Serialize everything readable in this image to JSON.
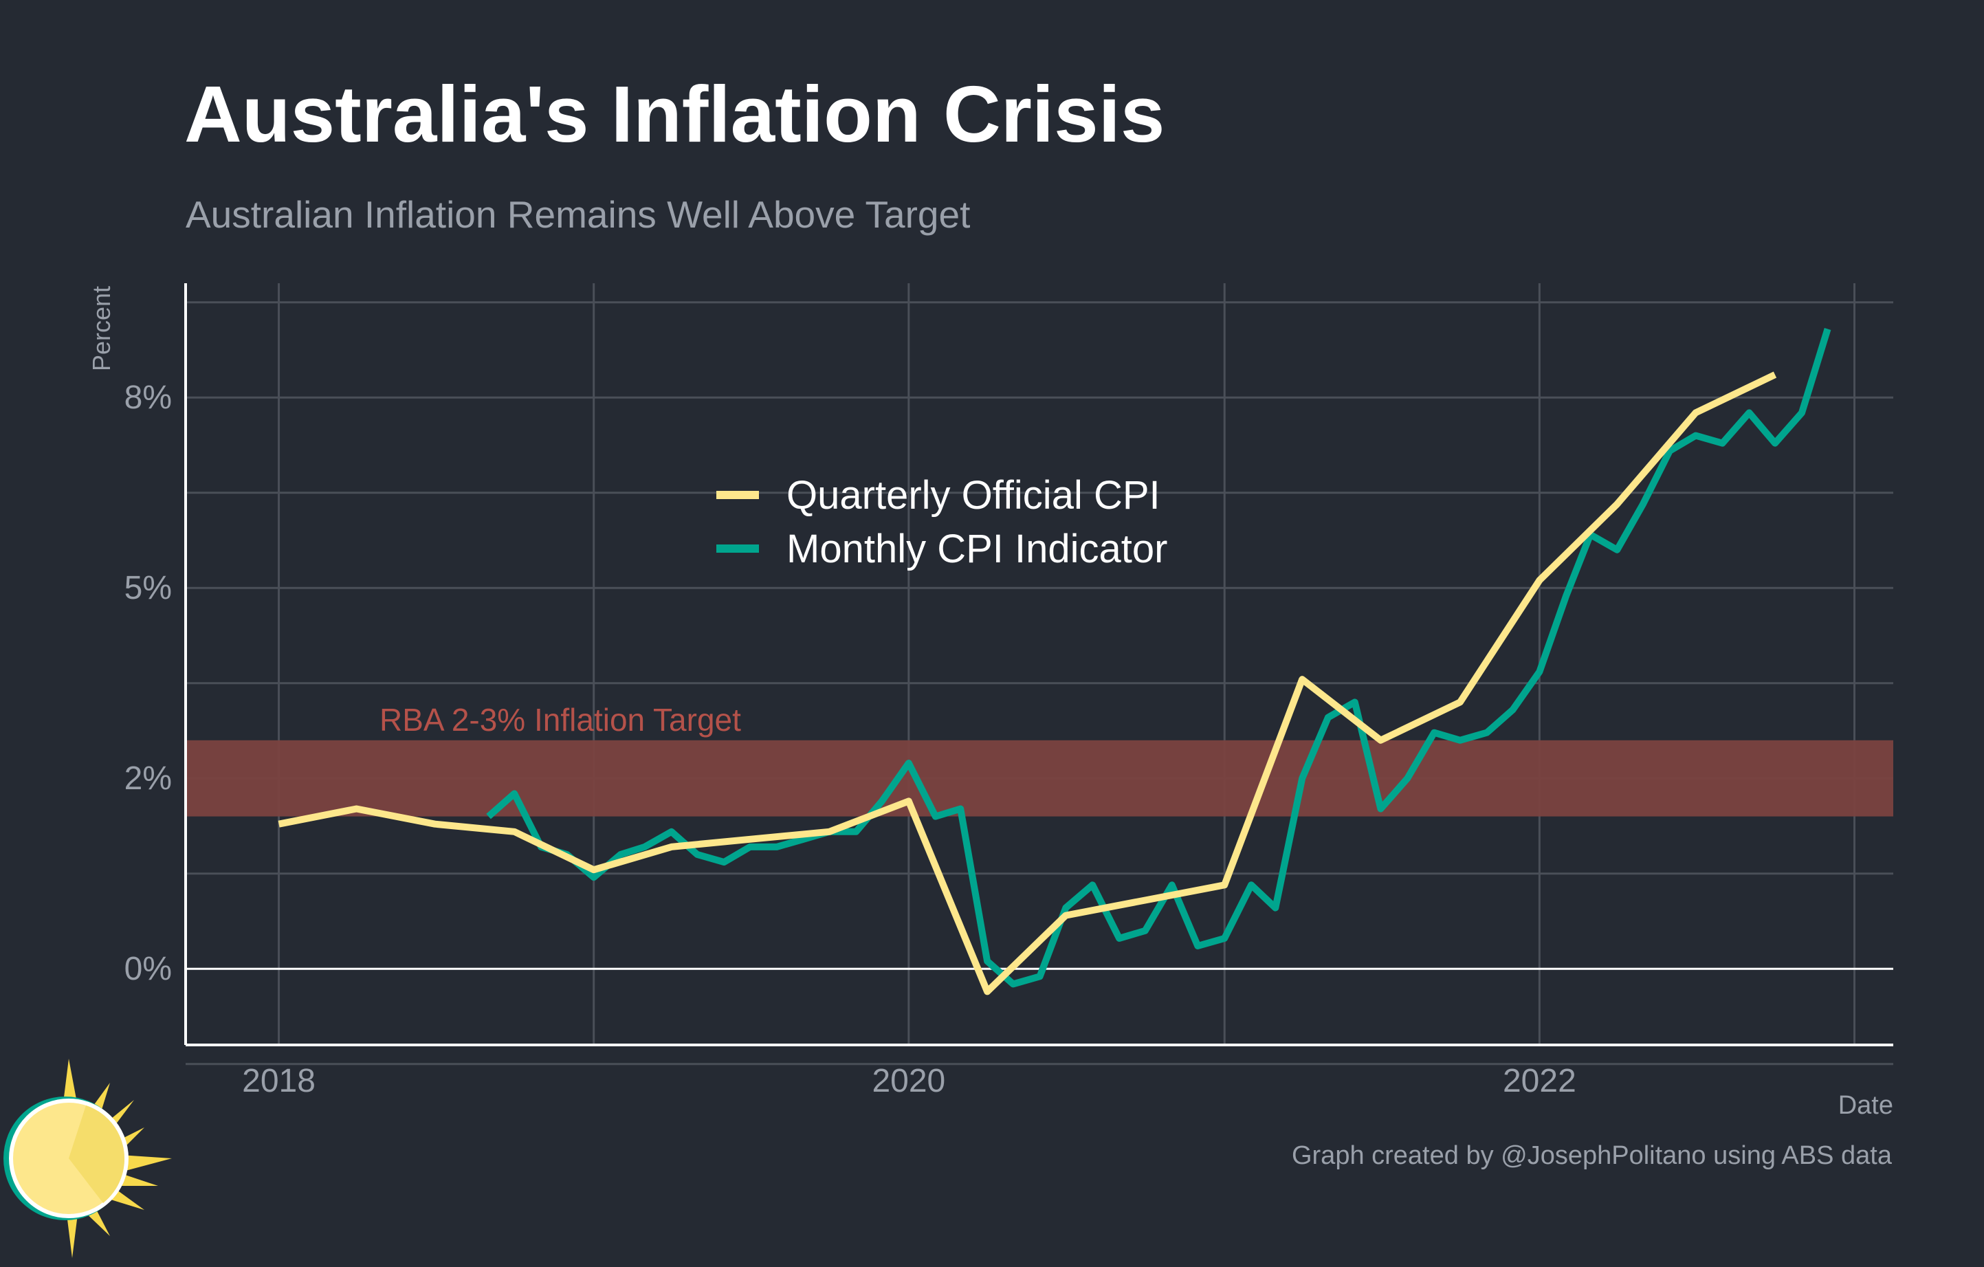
{
  "title": "Australia's Inflation Crisis",
  "subtitle": "Australian Inflation Remains Well Above Target",
  "caption": "Graph created by @JosephPolitano using ABS data",
  "colors": {
    "background": "#252a33",
    "quarterly": "#fde78c",
    "monthly": "#00a58e",
    "target_band": "#7a4240",
    "target_label": "#b5524a",
    "grid": "#4a4f58",
    "axis": "#ffffff",
    "tick_text": "#9aa0aa"
  },
  "chart_data": {
    "type": "line",
    "title": "Australia's Inflation Crisis",
    "subtitle": "Australian Inflation Remains Well Above Target",
    "xlabel": "Date",
    "ylabel": "Percent",
    "xlim": [
      "2017-09-15",
      "2023-02-15"
    ],
    "ylim": [
      -1.0,
      9.0
    ],
    "x_ticks": [
      {
        "date": "2018-01-01",
        "label": "2018"
      },
      {
        "date": "2020-01-01",
        "label": "2020"
      },
      {
        "date": "2022-01-01",
        "label": "2022"
      }
    ],
    "y_ticks": [
      {
        "value": 0,
        "label": "0%"
      },
      {
        "value": 2.5,
        "label": "2%"
      },
      {
        "value": 5,
        "label": "5%"
      },
      {
        "value": 7.5,
        "label": "8%"
      }
    ],
    "grid": true,
    "legend_position": "top-center",
    "target_band": {
      "label": "RBA 2-3% Inflation Target",
      "low": 2.0,
      "high": 3.0
    },
    "series": [
      {
        "name": "Quarterly Official CPI",
        "color": "#fde78c",
        "points": [
          {
            "x": "2018-01-01",
            "y": 1.9
          },
          {
            "x": "2018-04-01",
            "y": 2.1
          },
          {
            "x": "2018-07-01",
            "y": 1.9
          },
          {
            "x": "2018-10-01",
            "y": 1.8
          },
          {
            "x": "2019-01-01",
            "y": 1.3
          },
          {
            "x": "2019-04-01",
            "y": 1.6
          },
          {
            "x": "2019-07-01",
            "y": 1.7
          },
          {
            "x": "2019-10-01",
            "y": 1.8
          },
          {
            "x": "2020-01-01",
            "y": 2.2
          },
          {
            "x": "2020-04-01",
            "y": -0.3
          },
          {
            "x": "2020-07-01",
            "y": 0.7
          },
          {
            "x": "2020-10-01",
            "y": 0.9
          },
          {
            "x": "2021-01-01",
            "y": 1.1
          },
          {
            "x": "2021-04-01",
            "y": 3.8
          },
          {
            "x": "2021-07-01",
            "y": 3.0
          },
          {
            "x": "2021-10-01",
            "y": 3.5
          },
          {
            "x": "2022-01-01",
            "y": 5.1
          },
          {
            "x": "2022-04-01",
            "y": 6.1
          },
          {
            "x": "2022-07-01",
            "y": 7.3
          },
          {
            "x": "2022-10-01",
            "y": 7.8
          }
        ]
      },
      {
        "name": "Monthly CPI Indicator",
        "color": "#00a58e",
        "points": [
          {
            "x": "2018-09-01",
            "y": 2.0
          },
          {
            "x": "2018-10-01",
            "y": 2.3
          },
          {
            "x": "2018-11-01",
            "y": 1.6
          },
          {
            "x": "2018-12-01",
            "y": 1.5
          },
          {
            "x": "2019-01-01",
            "y": 1.2
          },
          {
            "x": "2019-02-01",
            "y": 1.5
          },
          {
            "x": "2019-03-01",
            "y": 1.6
          },
          {
            "x": "2019-04-01",
            "y": 1.8
          },
          {
            "x": "2019-05-01",
            "y": 1.5
          },
          {
            "x": "2019-06-01",
            "y": 1.4
          },
          {
            "x": "2019-07-01",
            "y": 1.6
          },
          {
            "x": "2019-08-01",
            "y": 1.6
          },
          {
            "x": "2019-09-01",
            "y": 1.7
          },
          {
            "x": "2019-10-01",
            "y": 1.8
          },
          {
            "x": "2019-11-01",
            "y": 1.8
          },
          {
            "x": "2019-12-01",
            "y": 2.2
          },
          {
            "x": "2020-01-01",
            "y": 2.7
          },
          {
            "x": "2020-02-01",
            "y": 2.0
          },
          {
            "x": "2020-03-01",
            "y": 2.1
          },
          {
            "x": "2020-04-01",
            "y": 0.1
          },
          {
            "x": "2020-05-01",
            "y": -0.2
          },
          {
            "x": "2020-06-01",
            "y": -0.1
          },
          {
            "x": "2020-07-01",
            "y": 0.8
          },
          {
            "x": "2020-08-01",
            "y": 1.1
          },
          {
            "x": "2020-09-01",
            "y": 0.4
          },
          {
            "x": "2020-10-01",
            "y": 0.5
          },
          {
            "x": "2020-11-01",
            "y": 1.1
          },
          {
            "x": "2020-12-01",
            "y": 0.3
          },
          {
            "x": "2021-01-01",
            "y": 0.4
          },
          {
            "x": "2021-02-01",
            "y": 1.1
          },
          {
            "x": "2021-03-01",
            "y": 0.8
          },
          {
            "x": "2021-04-01",
            "y": 2.5
          },
          {
            "x": "2021-05-01",
            "y": 3.3
          },
          {
            "x": "2021-06-01",
            "y": 3.5
          },
          {
            "x": "2021-07-01",
            "y": 2.1
          },
          {
            "x": "2021-08-01",
            "y": 2.5
          },
          {
            "x": "2021-09-01",
            "y": 3.1
          },
          {
            "x": "2021-10-01",
            "y": 3.0
          },
          {
            "x": "2021-11-01",
            "y": 3.1
          },
          {
            "x": "2021-12-01",
            "y": 3.4
          },
          {
            "x": "2022-01-01",
            "y": 3.9
          },
          {
            "x": "2022-02-01",
            "y": 4.9
          },
          {
            "x": "2022-03-01",
            "y": 5.7
          },
          {
            "x": "2022-04-01",
            "y": 5.5
          },
          {
            "x": "2022-05-01",
            "y": 6.1
          },
          {
            "x": "2022-06-01",
            "y": 6.8
          },
          {
            "x": "2022-07-01",
            "y": 7.0
          },
          {
            "x": "2022-08-01",
            "y": 6.9
          },
          {
            "x": "2022-09-01",
            "y": 7.3
          },
          {
            "x": "2022-10-01",
            "y": 6.9
          },
          {
            "x": "2022-11-01",
            "y": 7.3
          },
          {
            "x": "2022-12-01",
            "y": 8.4
          }
        ]
      }
    ]
  }
}
